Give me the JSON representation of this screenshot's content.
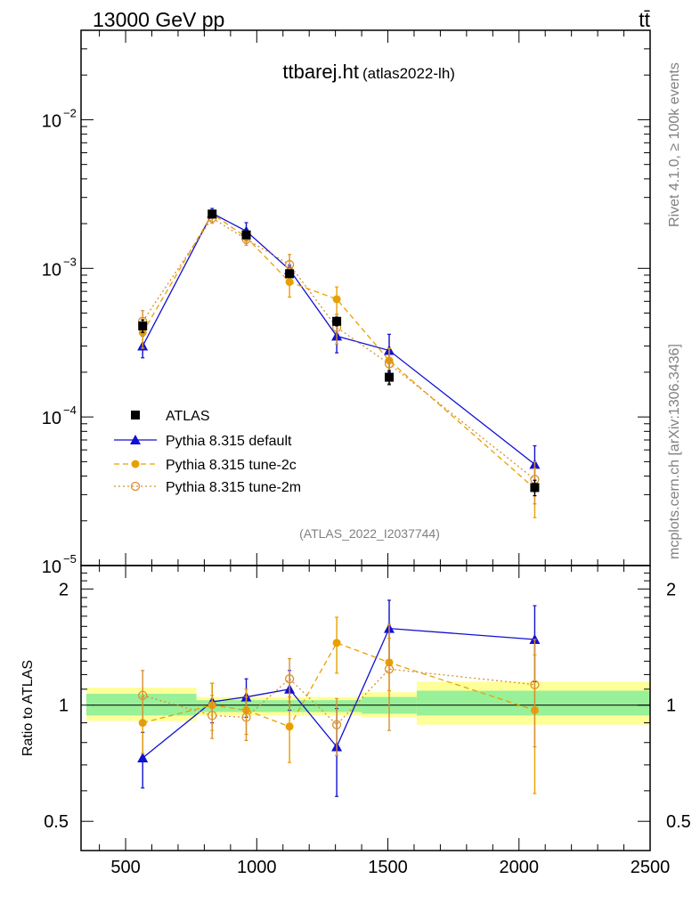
{
  "header": {
    "left": "13000 GeV pp",
    "right": "tt̄"
  },
  "side_labels": {
    "rivet": "Rivet 4.1.0, ≥ 100k events",
    "mcplots": "mcplots.cern.ch [arXiv:1306.3436]"
  },
  "colors": {
    "data": "#000000",
    "default": "#1010d0",
    "tune2c": "#e8a000",
    "tune2m": "#d89030",
    "band_inner": "#98f098",
    "band_outer": "#ffff99"
  },
  "chart_data": [
    {
      "type": "line",
      "title": "ttbarej.ht",
      "subtitle": "(atlas2022-lh)",
      "watermark": "(ATLAS_2022_I2037744)",
      "xlim": [
        330,
        2500
      ],
      "ylim": [
        1e-05,
        0.04
      ],
      "yscale": "log",
      "ytick_labels": [
        {
          "value": 0.01,
          "base": "10",
          "exp": "−2"
        },
        {
          "value": 0.001,
          "base": "10",
          "exp": "−3"
        },
        {
          "value": 0.0001,
          "base": "10",
          "exp": "−4"
        },
        {
          "value": 1e-05,
          "base": "10",
          "exp": "−5"
        }
      ],
      "legend": [
        "ATLAS",
        "Pythia 8.315 default",
        "Pythia 8.315 tune-2c",
        "Pythia 8.315 tune-2m"
      ],
      "legend_position": "bottom-left",
      "series": [
        {
          "name": "ATLAS",
          "x": [
            565,
            830,
            960,
            1125,
            1305,
            1505,
            2060
          ],
          "y": [
            0.00041,
            0.00232,
            0.00168,
            0.00092,
            0.00044,
            0.000185,
            3.35e-05
          ],
          "yerr": [
            4e-05,
            0.00012,
            8e-05,
            5e-05,
            3e-05,
            2e-05,
            4e-06
          ]
        },
        {
          "name": "Pythia 8.315 default",
          "x": [
            565,
            830,
            960,
            1125,
            1305,
            1505,
            2060
          ],
          "y": [
            0.0003,
            0.00235,
            0.00178,
            0.00098,
            0.00035,
            0.00028,
            4.8e-05
          ],
          "yerr": [
            5e-05,
            0.00018,
            0.00025,
            7e-05,
            8e-05,
            8e-05,
            1.6e-05
          ]
        },
        {
          "name": "Pythia 8.315 tune-2c",
          "x": [
            565,
            830,
            960,
            1125,
            1305,
            1505,
            2060
          ],
          "y": [
            0.00037,
            0.00233,
            0.00162,
            0.00081,
            0.00062,
            0.00024,
            3.3e-05
          ],
          "yerr": [
            8e-05,
            0.00015,
            0.00015,
            0.00017,
            0.00013,
            5e-05,
            1.2e-05
          ]
        },
        {
          "name": "Pythia 8.315 tune-2m",
          "x": [
            565,
            830,
            960,
            1125,
            1305,
            1505,
            2060
          ],
          "y": [
            0.00044,
            0.00218,
            0.00157,
            0.00106,
            0.0004,
            0.000228,
            3.8e-05
          ],
          "yerr": [
            8e-05,
            0.00017,
            0.00014,
            0.00018,
            9e-05,
            6e-05,
            1.2e-05
          ]
        }
      ]
    },
    {
      "type": "line",
      "ylabel": "Ratio to ATLAS",
      "xlim": [
        330,
        2500
      ],
      "ylim": [
        0.42,
        2.3
      ],
      "yscale": "log",
      "ytick_labels": [
        {
          "value": 2,
          "label": "2"
        },
        {
          "value": 1,
          "label": "1"
        },
        {
          "value": 0.5,
          "label": "0.5"
        }
      ],
      "xtick_labels": [
        "500",
        "1000",
        "1500",
        "2000",
        "2500"
      ],
      "xtick_values": [
        500,
        1000,
        1500,
        2000,
        2500
      ],
      "bands": [
        {
          "x0": 350,
          "x1": 770,
          "inner": [
            0.94,
            1.07
          ],
          "outer": [
            0.91,
            1.11
          ]
        },
        {
          "x0": 770,
          "x1": 1400,
          "inner": [
            0.96,
            1.03
          ],
          "outer": [
            0.94,
            1.05
          ]
        },
        {
          "x0": 1400,
          "x1": 1610,
          "inner": [
            0.95,
            1.05
          ],
          "outer": [
            0.93,
            1.08
          ]
        },
        {
          "x0": 1610,
          "x1": 2500,
          "inner": [
            0.94,
            1.09
          ],
          "outer": [
            0.89,
            1.15
          ]
        }
      ],
      "series": [
        {
          "name": "Pythia 8.315 default",
          "x": [
            565,
            830,
            960,
            1125,
            1305,
            1505,
            2060
          ],
          "y": [
            0.73,
            1.02,
            1.05,
            1.1,
            0.78,
            1.58,
            1.48
          ],
          "yerr": [
            0.12,
            0.12,
            0.12,
            0.13,
            0.2,
            0.29,
            0.33
          ]
        },
        {
          "name": "Pythia 8.315 tune-2c",
          "x": [
            565,
            830,
            960,
            1125,
            1305,
            1505,
            2060
          ],
          "y": [
            0.9,
            1.0,
            0.97,
            0.88,
            1.45,
            1.29,
            0.97
          ],
          "yerr": [
            0.15,
            0.14,
            0.13,
            0.17,
            0.24,
            0.2,
            0.38
          ]
        },
        {
          "name": "Pythia 8.315 tune-2m",
          "x": [
            565,
            830,
            960,
            1125,
            1305,
            1505,
            2060
          ],
          "y": [
            1.06,
            0.94,
            0.93,
            1.17,
            0.89,
            1.24,
            1.13
          ],
          "yerr": [
            0.17,
            0.12,
            0.12,
            0.15,
            0.15,
            0.38,
            0.35
          ]
        }
      ]
    }
  ]
}
